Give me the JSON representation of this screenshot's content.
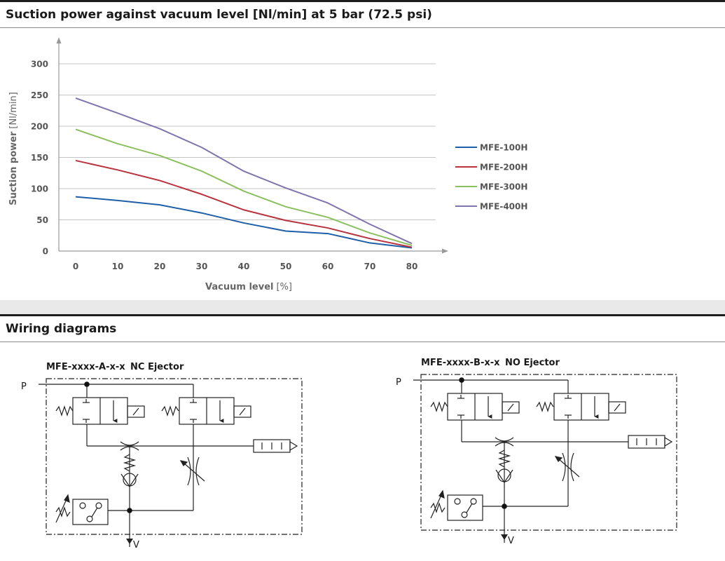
{
  "sections": {
    "chart_title": "Suction power against vacuum level [Nl/min] at 5 bar (72.5 psi)",
    "wiring_title": "Wiring diagrams"
  },
  "colors": {
    "MFE-100H": "#1f5fa8",
    "MFE-200H": "#b8333f",
    "MFE-300H": "#8cbf5e",
    "MFE-400H": "#8174ad"
  },
  "chart_data": {
    "type": "line",
    "title": "Suction power against vacuum level [Nl/min] at 5 bar (72.5 psi)",
    "xlabel": "Vacuum level",
    "xlabel_unit": "[%]",
    "ylabel": "Suction power",
    "ylabel_unit": "[Nl/min]",
    "x": [
      0,
      10,
      20,
      30,
      40,
      50,
      60,
      70,
      80
    ],
    "xlim": [
      0,
      80
    ],
    "ylim": [
      0,
      300
    ],
    "xticks": [
      "0",
      "10",
      "20",
      "30",
      "40",
      "50",
      "60",
      "70",
      "80"
    ],
    "yticks": [
      "0",
      "50",
      "100",
      "150",
      "200",
      "250",
      "300"
    ],
    "grid": "horizontal",
    "legend": "right",
    "series": [
      {
        "name": "MFE-100H",
        "values": [
          87,
          81,
          74,
          61,
          45,
          32,
          28,
          13,
          5
        ]
      },
      {
        "name": "MFE-200H",
        "values": [
          145,
          130,
          113,
          91,
          66,
          49,
          37,
          20,
          6
        ]
      },
      {
        "name": "MFE-300H",
        "values": [
          195,
          172,
          153,
          128,
          96,
          71,
          54,
          29,
          9
        ]
      },
      {
        "name": "MFE-400H",
        "values": [
          245,
          221,
          196,
          166,
          128,
          101,
          77,
          43,
          12
        ]
      }
    ]
  },
  "wiring": {
    "diagrams": [
      {
        "code": "MFE-xxxx-A-x-x",
        "type": "NC Ejector",
        "port_p": "P",
        "port_v": "V"
      },
      {
        "code": "MFE-xxxx-B-x-x",
        "type": "NO Ejector",
        "port_p": "P",
        "port_v": "V"
      }
    ]
  }
}
